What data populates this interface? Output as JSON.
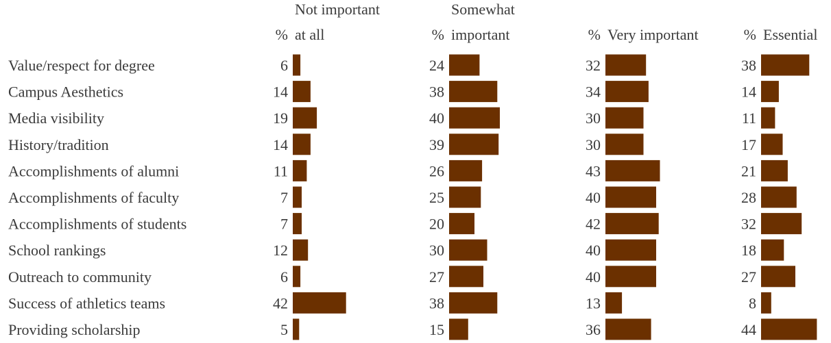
{
  "chart_data": {
    "type": "bar",
    "orientation": "horizontal",
    "layout": "small-multiples",
    "bar_color": "#6b3000",
    "value_header": "%",
    "categories": [
      "Value/respect for degree",
      "Campus Aesthetics",
      "Media visibility",
      "History/tradition",
      "Accomplishments of alumni",
      "Accomplishments of faculty",
      "Accomplishments of students",
      "School rankings",
      "Outreach to community",
      "Success of athletics teams",
      "Providing scholarship"
    ],
    "series": [
      {
        "name": "Not important at all",
        "header_lines": [
          "Not important",
          "at all"
        ],
        "values": [
          6,
          14,
          19,
          14,
          11,
          7,
          7,
          12,
          6,
          42,
          5
        ]
      },
      {
        "name": "Somewhat important",
        "header_lines": [
          "Somewhat",
          "important"
        ],
        "values": [
          24,
          38,
          40,
          39,
          26,
          25,
          20,
          30,
          27,
          38,
          15
        ]
      },
      {
        "name": "Very important",
        "header_lines": [
          "",
          "Very important"
        ],
        "values": [
          32,
          34,
          30,
          30,
          43,
          40,
          42,
          40,
          40,
          13,
          36
        ]
      },
      {
        "name": "Essential",
        "header_lines": [
          "",
          "Essential"
        ],
        "values": [
          38,
          14,
          11,
          17,
          21,
          28,
          32,
          18,
          27,
          8,
          44
        ]
      }
    ]
  }
}
